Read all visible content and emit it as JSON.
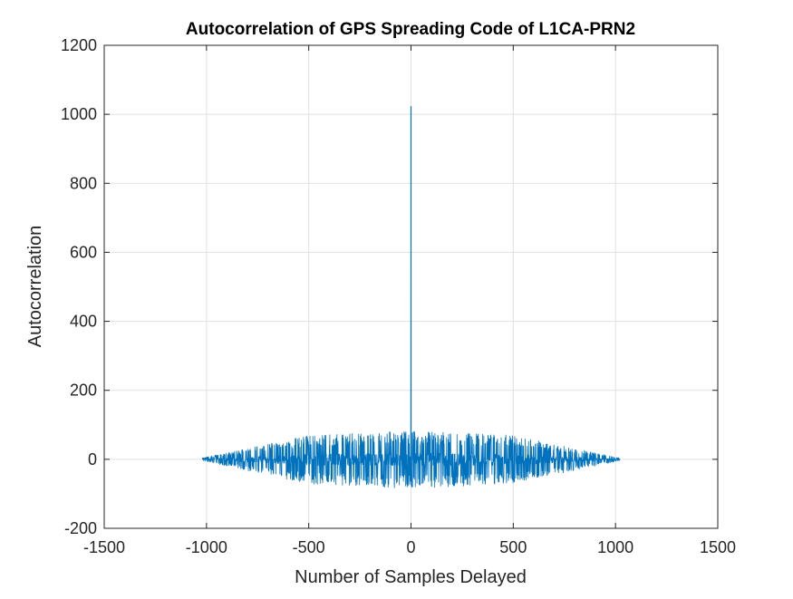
{
  "chart_data": {
    "type": "line",
    "title": "Autocorrelation of GPS Spreading Code of L1CA-PRN2",
    "xlabel": "Number of Samples Delayed",
    "ylabel": "Autocorrelation",
    "xlim": [
      -1500,
      1500
    ],
    "ylim": [
      -200,
      1200
    ],
    "xticks": [
      -1500,
      -1000,
      -500,
      0,
      500,
      1000,
      1500
    ],
    "yticks": [
      -200,
      0,
      200,
      400,
      600,
      800,
      1000,
      1200
    ],
    "xtick_labels": [
      "-1500",
      "-1000",
      "-500",
      "0",
      "500",
      "1000",
      "1500"
    ],
    "ytick_labels": [
      "-200",
      "0",
      "200",
      "400",
      "600",
      "800",
      "1000",
      "1200"
    ],
    "grid": true,
    "legend": "none",
    "series": [
      {
        "color": "#0072bd",
        "x_range": [
          -1022,
          1022
        ],
        "peak": {
          "x": 0,
          "y": 1023
        },
        "sidelobe_values": [
          -65,
          -1,
          63
        ],
        "sidelobe_envelope": [
          {
            "x": -1022,
            "y": 3
          },
          {
            "x": -750,
            "y": 30
          },
          {
            "x": -500,
            "y": 55
          },
          {
            "x": 0,
            "y": 65
          },
          {
            "x": 500,
            "y": 55
          },
          {
            "x": 750,
            "y": 30
          },
          {
            "x": 1022,
            "y": 3
          }
        ]
      }
    ]
  },
  "colors": {
    "line": "#0072bd",
    "grid": "#e1e1e1",
    "axes": "#262626",
    "background": "#ffffff"
  }
}
